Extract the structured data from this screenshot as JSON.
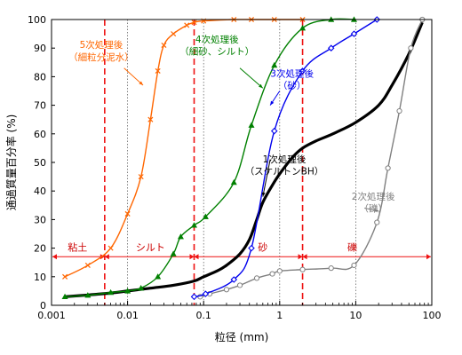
{
  "chart_data": {
    "type": "line",
    "xlabel": "粒径 (mm)",
    "ylabel": "通過質量百分率 (%)",
    "xscale": "log",
    "xlim": [
      0.001,
      100
    ],
    "ylim": [
      0,
      100
    ],
    "xticks": [
      {
        "value": 0.001,
        "label": "0.001"
      },
      {
        "value": 0.01,
        "label": "0.01"
      },
      {
        "value": 0.1,
        "label": "0.1"
      },
      {
        "value": 1,
        "label": "1"
      },
      {
        "value": 10,
        "label": "10"
      },
      {
        "value": 100,
        "label": "100"
      }
    ],
    "yticks": [
      0,
      10,
      20,
      30,
      40,
      50,
      60,
      70,
      80,
      90,
      100
    ],
    "grid_lines_x": [
      0.01,
      0.1,
      1,
      10
    ],
    "boundaries": [
      0.005,
      0.075,
      2
    ],
    "zones": {
      "level": 17,
      "labels": [
        {
          "text": "粘土",
          "x": 0.0022
        },
        {
          "text": "シルト",
          "x": 0.02
        },
        {
          "text": "砂",
          "x": 0.6
        },
        {
          "text": "礫",
          "x": 9
        }
      ]
    },
    "series": [
      {
        "name": "1次処理後（スケルトンBH）",
        "color": "#000000",
        "marker": "none",
        "points": [
          [
            0.0015,
            3
          ],
          [
            0.003,
            3.6
          ],
          [
            0.006,
            4.3
          ],
          [
            0.01,
            5
          ],
          [
            0.02,
            6
          ],
          [
            0.04,
            7
          ],
          [
            0.075,
            8.5
          ],
          [
            0.1,
            10
          ],
          [
            0.15,
            12
          ],
          [
            0.2,
            14
          ],
          [
            0.3,
            18
          ],
          [
            0.4,
            23
          ],
          [
            0.5,
            30
          ],
          [
            0.6,
            36
          ],
          [
            0.8,
            42
          ],
          [
            1,
            46
          ],
          [
            1.5,
            52
          ],
          [
            2,
            55
          ],
          [
            3,
            57.5
          ],
          [
            5,
            60
          ],
          [
            10,
            64
          ],
          [
            20,
            70
          ],
          [
            30,
            77
          ],
          [
            50,
            88
          ],
          [
            75,
            99
          ]
        ]
      },
      {
        "name": "2次処理後（礫）",
        "color": "#808080",
        "marker": "circle",
        "points": [
          [
            0.09,
            3
          ],
          [
            0.12,
            4
          ],
          [
            0.2,
            5.5
          ],
          [
            0.3,
            7
          ],
          [
            0.5,
            9.5
          ],
          [
            0.8,
            11
          ],
          [
            1,
            12
          ],
          [
            2,
            12.5
          ],
          [
            4.75,
            13
          ],
          [
            9.5,
            14
          ],
          [
            19,
            29
          ],
          [
            26.5,
            48
          ],
          [
            37.5,
            68
          ],
          [
            53,
            90
          ],
          [
            75,
            100
          ]
        ]
      },
      {
        "name": "3次処理後（砂）",
        "color": "#0000ee",
        "marker": "diamond",
        "points": [
          [
            0.075,
            3
          ],
          [
            0.106,
            4
          ],
          [
            0.25,
            9
          ],
          [
            0.425,
            20
          ],
          [
            0.85,
            61
          ],
          [
            2,
            82
          ],
          [
            4.75,
            90
          ],
          [
            9.5,
            95
          ],
          [
            19,
            100
          ]
        ]
      },
      {
        "name": "4次処理後（細砂、シルト）",
        "color": "#008000",
        "marker": "triangle",
        "points": [
          [
            0.0015,
            3
          ],
          [
            0.003,
            3.5
          ],
          [
            0.006,
            4.5
          ],
          [
            0.01,
            5
          ],
          [
            0.015,
            6
          ],
          [
            0.025,
            10
          ],
          [
            0.04,
            18
          ],
          [
            0.05,
            24
          ],
          [
            0.075,
            28
          ],
          [
            0.106,
            31
          ],
          [
            0.25,
            43
          ],
          [
            0.425,
            63
          ],
          [
            0.85,
            84
          ],
          [
            2,
            97
          ],
          [
            4.75,
            100
          ],
          [
            9.5,
            100
          ]
        ]
      },
      {
        "name": "5次処理後（細粒分泥水）",
        "color": "#ff6600",
        "marker": "x",
        "points": [
          [
            0.0015,
            10
          ],
          [
            0.003,
            14
          ],
          [
            0.006,
            20
          ],
          [
            0.01,
            32
          ],
          [
            0.015,
            45
          ],
          [
            0.02,
            65
          ],
          [
            0.025,
            82
          ],
          [
            0.03,
            91
          ],
          [
            0.04,
            95
          ],
          [
            0.06,
            98
          ],
          [
            0.075,
            99
          ],
          [
            0.1,
            99.5
          ],
          [
            0.25,
            100
          ],
          [
            0.425,
            100
          ],
          [
            0.85,
            100
          ],
          [
            2,
            100
          ]
        ]
      }
    ],
    "annotations": [
      {
        "lines": [
          "5次処理後",
          "（細粒分泥水）"
        ],
        "color": "#ff6600",
        "x": 0.0045,
        "y": 90
      },
      {
        "lines": [
          "4次処理後",
          "（細砂、シルト）"
        ],
        "color": "#008000",
        "x": 0.15,
        "y": 92
      },
      {
        "lines": [
          "3次処理後",
          "（砂）"
        ],
        "color": "#0000ee",
        "x": 1.45,
        "y": 80
      },
      {
        "lines": [
          "1次処理後",
          "（スケルトンBH）"
        ],
        "color": "#000000",
        "x": 1.15,
        "y": 50
      },
      {
        "lines": [
          "2次処理後",
          "（礫）"
        ],
        "color": "#808080",
        "x": 17,
        "y": 37
      }
    ]
  }
}
